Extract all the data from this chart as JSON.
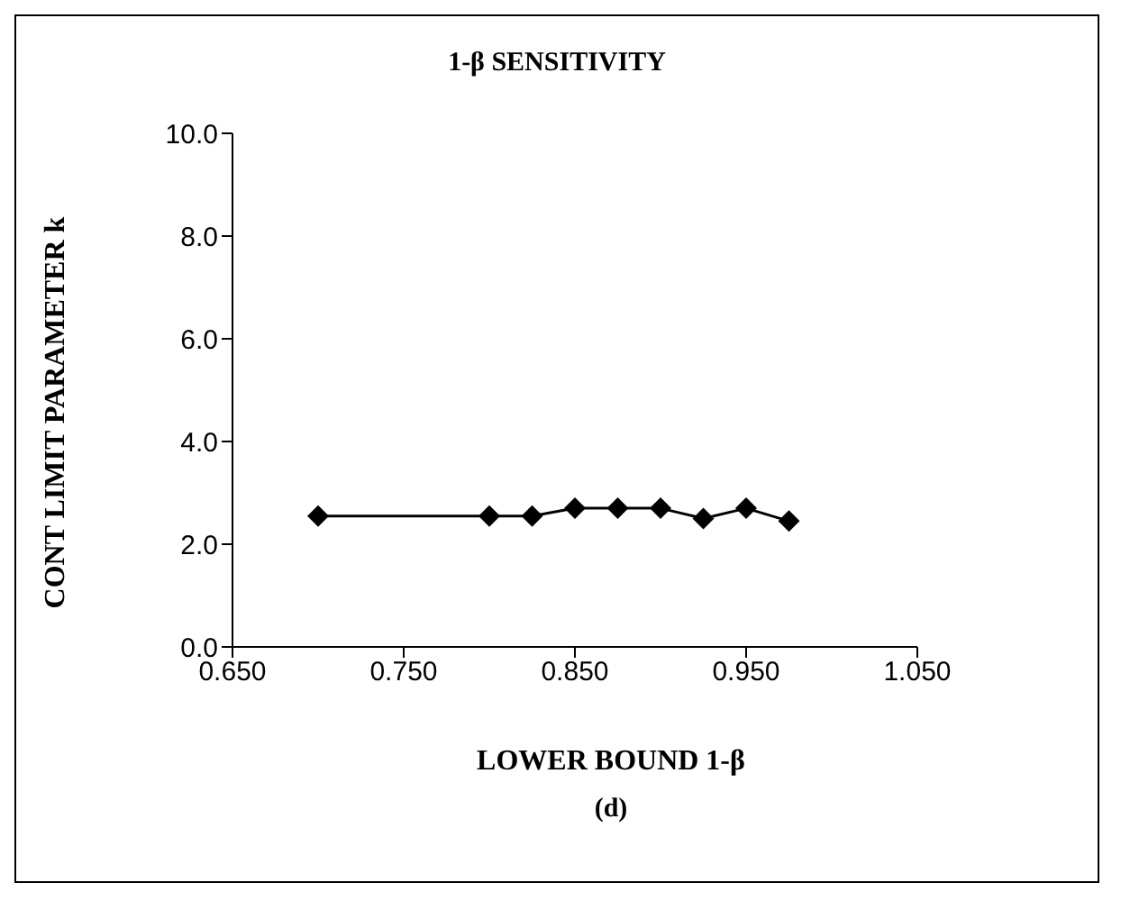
{
  "chart_data": {
    "type": "line",
    "title": "1-β SENSITIVITY",
    "xlabel": "LOWER BOUND 1-β",
    "ylabel": "CONT LIMIT PARAMETER k",
    "annotations": [
      "(d)"
    ],
    "x": [
      0.7,
      0.8,
      0.825,
      0.85,
      0.875,
      0.9,
      0.925,
      0.95,
      0.975
    ],
    "series": [
      {
        "color": "#000000",
        "values": [
          2.55,
          2.55,
          2.55,
          2.7,
          2.7,
          2.7,
          2.5,
          2.7,
          2.45
        ]
      }
    ],
    "xlim": [
      0.65,
      1.05
    ],
    "xticks": [
      {
        "value": 0.65,
        "label": "0.650"
      },
      {
        "value": 0.75,
        "label": "0.750"
      },
      {
        "value": 0.85,
        "label": "0.850"
      },
      {
        "value": 0.95,
        "label": "0.950"
      },
      {
        "value": 1.05,
        "label": "1.050"
      }
    ],
    "ylim": [
      0,
      10
    ],
    "yticks": [
      {
        "value": 0,
        "label": "0.0"
      },
      {
        "value": 2,
        "label": "2.0"
      },
      {
        "value": 4,
        "label": "4.0"
      },
      {
        "value": 6,
        "label": "6.0"
      },
      {
        "value": 8,
        "label": "8.0"
      },
      {
        "value": 10,
        "label": "10.0"
      }
    ],
    "grid": false,
    "legend": false,
    "marker": "diamond",
    "line_style": "solid"
  }
}
